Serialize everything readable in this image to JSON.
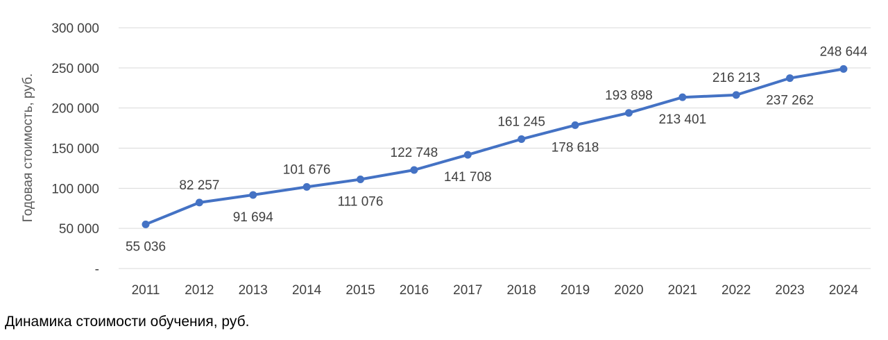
{
  "caption": "Динамика стоимости обучения, руб.",
  "chart_data": {
    "type": "line",
    "title": "",
    "xlabel": "",
    "ylabel": "Годовая стоимость, руб.",
    "ylim": [
      0,
      300000
    ],
    "y_ticks": [
      0,
      50000,
      100000,
      150000,
      200000,
      250000,
      300000
    ],
    "y_tick_labels": [
      "-",
      "50 000",
      "100 000",
      "150 000",
      "200 000",
      "250 000",
      "300 000"
    ],
    "grid": true,
    "legend": "none",
    "categories": [
      "2011",
      "2012",
      "2013",
      "2014",
      "2015",
      "2016",
      "2017",
      "2018",
      "2019",
      "2020",
      "2021",
      "2022",
      "2023",
      "2024"
    ],
    "series": [
      {
        "values": [
          55036,
          82257,
          91694,
          101676,
          111076,
          122748,
          141708,
          161245,
          178618,
          193898,
          213401,
          216213,
          237262,
          248644
        ],
        "labels": [
          "55 036",
          "82 257",
          "91 694",
          "101 676",
          "111 076",
          "122 748",
          "141 708",
          "161 245",
          "178 618",
          "193 898",
          "213 401",
          "216 213",
          "237 262",
          "248 644"
        ],
        "label_positions": [
          "below",
          "above",
          "below",
          "above",
          "below",
          "above",
          "below",
          "above",
          "below",
          "above",
          "below",
          "above",
          "below",
          "above"
        ],
        "color": "#4472C4"
      }
    ],
    "gridline_color": "#D9D9D9"
  }
}
